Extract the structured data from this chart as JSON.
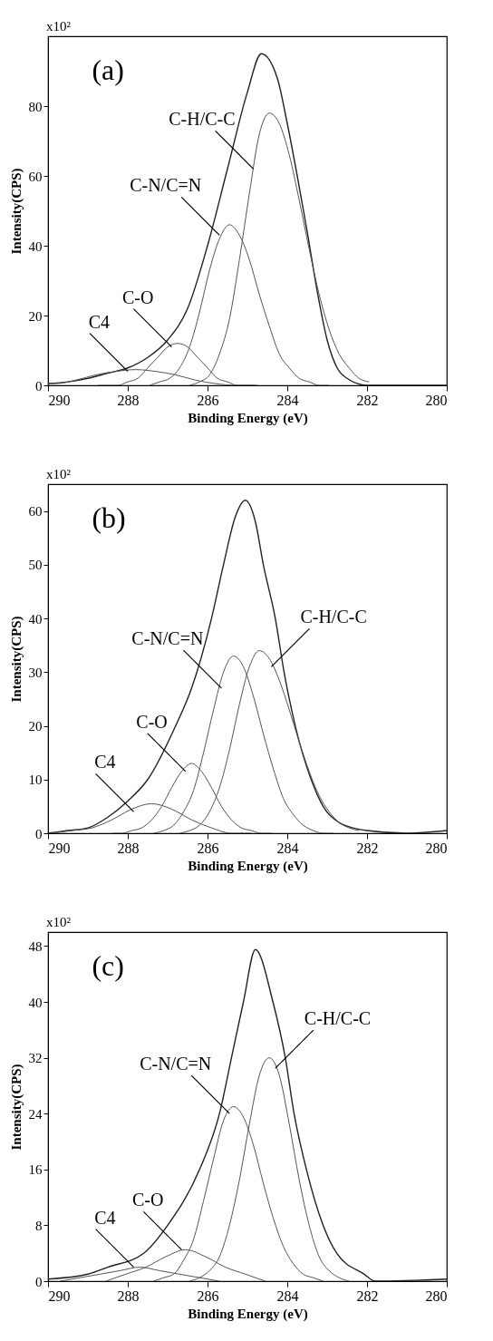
{
  "chart_data": [
    {
      "type": "line",
      "xlabel": "Binding Energy (eV)",
      "ylabel": "Intensity(CPS)",
      "xlim": [
        290,
        280
      ],
      "xticks": [
        290,
        288,
        286,
        284,
        282,
        280
      ],
      "ylim": [
        0,
        100
      ],
      "yticks": [
        0,
        20,
        40,
        60,
        80
      ],
      "annotations": [
        "x10²",
        "(a)",
        {
          "text": "C-H/C-C",
          "x": 284.85,
          "y": 62
        },
        {
          "text": "C-N/C=N",
          "x": 285.7,
          "y": 43
        },
        {
          "text": "C-O",
          "x": 286.9,
          "y": 11
        },
        {
          "text": "C4",
          "x": 288,
          "y": 4
        }
      ],
      "series": [
        {
          "color": "#222222",
          "x": [
            290,
            289.5,
            289,
            288.5,
            288,
            287.5,
            287,
            286.5,
            286,
            285.5,
            285,
            284.65,
            284.25,
            284,
            283.75,
            283.5,
            283.25,
            283,
            282.75,
            282.5,
            282,
            280
          ],
          "values": [
            0.5,
            1,
            2,
            3.5,
            5,
            8,
            13,
            22,
            40,
            62,
            84,
            95,
            88,
            75,
            60,
            44,
            27,
            13,
            5,
            2,
            0,
            0
          ]
        },
        {
          "color": "#555555",
          "x": [
            286.45,
            286.2,
            285.95,
            285.7,
            285.45,
            285.2,
            284.95,
            284.7,
            284.45,
            284.2,
            283.95,
            283.7,
            283.45,
            283.2,
            282.95,
            282.7,
            282.45,
            282.2,
            281.95
          ],
          "values": [
            0,
            1,
            3,
            9,
            19,
            36,
            55,
            72,
            78,
            75,
            66,
            53,
            39,
            26,
            16,
            9,
            5,
            2,
            1
          ]
        },
        {
          "color": "#555555",
          "x": [
            287.45,
            287.2,
            286.95,
            286.7,
            286.45,
            286.2,
            285.95,
            285.7,
            285.45,
            285.2,
            284.95,
            284.7,
            284.45,
            284.2,
            283.95,
            283.7,
            283.45,
            283.2,
            282.95
          ],
          "values": [
            0,
            1,
            2,
            5,
            11,
            21,
            33,
            42,
            46,
            43,
            36,
            26,
            17,
            9,
            5,
            2,
            1,
            0,
            0
          ]
        },
        {
          "color": "#555555",
          "x": [
            288.75,
            288.5,
            288.25,
            288,
            287.75,
            287.5,
            287.25,
            287,
            286.75,
            286.5,
            286.25,
            286,
            285.75,
            285.5,
            285.25,
            285,
            284.75
          ],
          "values": [
            0,
            0,
            0,
            1,
            2,
            5,
            8,
            11,
            12,
            11,
            8,
            5,
            2,
            1,
            0,
            0,
            0
          ]
        },
        {
          "color": "#555555",
          "x": [
            290,
            289.8,
            289.3,
            288.8,
            288.3,
            287.8,
            287.3,
            286.8,
            286.3,
            285.8,
            285.3,
            284.8
          ],
          "values": [
            0.5,
            0.5,
            1.5,
            3,
            4,
            4.5,
            4,
            3,
            1.5,
            0.5,
            0,
            0
          ]
        }
      ]
    },
    {
      "type": "line",
      "xlabel": "Binding Energy (eV)",
      "ylabel": "Intensity(CPS)",
      "xlim": [
        290,
        280
      ],
      "xticks": [
        290,
        288,
        286,
        284,
        282,
        280
      ],
      "ylim": [
        0,
        65
      ],
      "yticks": [
        0,
        10,
        20,
        30,
        40,
        50,
        60
      ],
      "annotations": [
        "x10²",
        "(b)",
        {
          "text": "C-H/C-C",
          "x": 284.4,
          "y": 31
        },
        {
          "text": "C-N/C=N",
          "x": 285.65,
          "y": 27
        },
        {
          "text": "C-O",
          "x": 286.55,
          "y": 11.5
        },
        {
          "text": "C4",
          "x": 287.85,
          "y": 4
        }
      ],
      "series": [
        {
          "color": "#222222",
          "x": [
            290,
            289.5,
            289,
            288.5,
            288,
            287.5,
            286.8,
            286.4,
            285.9,
            285.6,
            285.3,
            285.05,
            284.8,
            284.6,
            284.3,
            284.08,
            283.8,
            283.4,
            283.1,
            282.7,
            282.35,
            282,
            281,
            280
          ],
          "values": [
            0,
            0.5,
            1,
            3,
            6,
            10,
            20,
            27,
            40,
            50,
            59,
            62,
            58,
            50,
            40,
            30,
            20,
            10,
            5,
            2,
            1,
            0.5,
            0,
            0.5
          ]
        },
        {
          "color": "#555555",
          "x": [
            286.7,
            286.45,
            286.2,
            285.95,
            285.7,
            285.45,
            285.2,
            284.95,
            284.7,
            284.45,
            284.2,
            283.95,
            283.7,
            283.45,
            283.2,
            282.95,
            282.7,
            282.45,
            282.2
          ],
          "values": [
            0,
            0.5,
            1.5,
            4,
            8.5,
            15.5,
            24,
            31,
            34,
            32.5,
            28.5,
            23,
            17,
            11.5,
            7,
            4,
            2,
            1,
            0.5
          ]
        },
        {
          "color": "#555555",
          "x": [
            287.35,
            287.1,
            286.85,
            286.6,
            286.35,
            286.1,
            285.85,
            285.6,
            285.35,
            285.1,
            284.85,
            284.6,
            284.35,
            284.1,
            283.85,
            283.6,
            283.35,
            283.1,
            282.85
          ],
          "values": [
            0,
            0.5,
            1.5,
            4,
            8,
            15,
            23,
            30,
            33,
            31,
            25.5,
            18.5,
            12,
            6.5,
            3.5,
            1.5,
            0.5,
            0,
            0
          ]
        },
        {
          "color": "#555555",
          "x": [
            288.4,
            288.15,
            287.9,
            287.65,
            287.4,
            287.15,
            286.9,
            286.65,
            286.4,
            286.15,
            285.9,
            285.65,
            285.4,
            285.15,
            284.9,
            284.65,
            284.4
          ],
          "values": [
            0,
            0,
            0.5,
            1,
            2.5,
            5,
            8.5,
            11.5,
            13,
            11.5,
            8.5,
            5,
            2.5,
            1,
            0.5,
            0,
            0
          ]
        },
        {
          "color": "#555555",
          "x": [
            289.9,
            289.4,
            288.9,
            288.4,
            287.9,
            287.4,
            286.9,
            286.4,
            285.9,
            285.4,
            284.9
          ],
          "values": [
            0,
            0.5,
            1,
            2.5,
            4.5,
            5.5,
            4.5,
            2.5,
            1,
            0,
            0
          ]
        }
      ]
    },
    {
      "type": "line",
      "xlabel": "Binding Energy (eV)",
      "ylabel": "Intensity(CPS)",
      "xlim": [
        290,
        280
      ],
      "xticks": [
        290,
        288,
        286,
        284,
        282,
        280
      ],
      "ylim": [
        0,
        50
      ],
      "yticks": [
        0,
        8,
        16,
        24,
        32,
        40,
        48
      ],
      "annotations": [
        "x10²",
        "(c)",
        {
          "text": "C-H/C-C",
          "x": 284.3,
          "y": 30.5
        },
        {
          "text": "C-N/C=N",
          "x": 285.45,
          "y": 24
        },
        {
          "text": "C-O",
          "x": 286.65,
          "y": 4.5
        },
        {
          "text": "C4",
          "x": 287.85,
          "y": 2
        }
      ],
      "series": [
        {
          "color": "#222222",
          "x": [
            290,
            289,
            288.5,
            287.6,
            287,
            286.2,
            285.7,
            285.4,
            285.1,
            284.8,
            284.36,
            284.05,
            283.83,
            283.52,
            283.1,
            282.76,
            282.07,
            281.8,
            280
          ],
          "values": [
            0.3,
            1,
            2,
            4,
            8,
            16,
            24,
            32,
            40,
            47.5,
            40,
            32,
            24,
            16,
            8,
            4,
            1,
            0,
            0.3
          ]
        },
        {
          "color": "#555555",
          "x": [
            286.45,
            286.2,
            285.95,
            285.7,
            285.45,
            285.2,
            284.95,
            284.7,
            284.45,
            284.2,
            283.95,
            283.7,
            283.45,
            283.2,
            282.95,
            282.7,
            282.45
          ],
          "values": [
            0,
            0.5,
            1.5,
            3.5,
            8,
            14.5,
            22.5,
            29.5,
            32,
            29.5,
            22.5,
            14.5,
            8,
            3.5,
            1.5,
            0.5,
            0
          ]
        },
        {
          "color": "#555555",
          "x": [
            287.35,
            287.1,
            286.85,
            286.6,
            286.35,
            286.1,
            285.85,
            285.6,
            285.35,
            285.1,
            284.85,
            284.6,
            284.35,
            284.1,
            283.85,
            283.6,
            283.35,
            283.1
          ],
          "values": [
            0,
            0.5,
            1,
            3,
            6,
            11.5,
            17.5,
            23,
            25,
            23.5,
            19.5,
            14,
            9,
            5,
            2.5,
            1,
            0.5,
            0
          ]
        },
        {
          "color": "#555555",
          "x": [
            288.55,
            288.05,
            287.55,
            287.05,
            286.55,
            286.05,
            285.55,
            285.05,
            284.55
          ],
          "values": [
            0,
            1,
            2,
            3.5,
            4.5,
            3.5,
            2,
            1,
            0
          ]
        },
        {
          "color": "#555555",
          "x": [
            289.7,
            289.2,
            288.7,
            288.2,
            287.7,
            287.2,
            286.7,
            286.2,
            285.7
          ],
          "values": [
            0,
            0.5,
            1,
            1.5,
            2,
            1.5,
            1,
            0.5,
            0
          ]
        }
      ]
    }
  ]
}
